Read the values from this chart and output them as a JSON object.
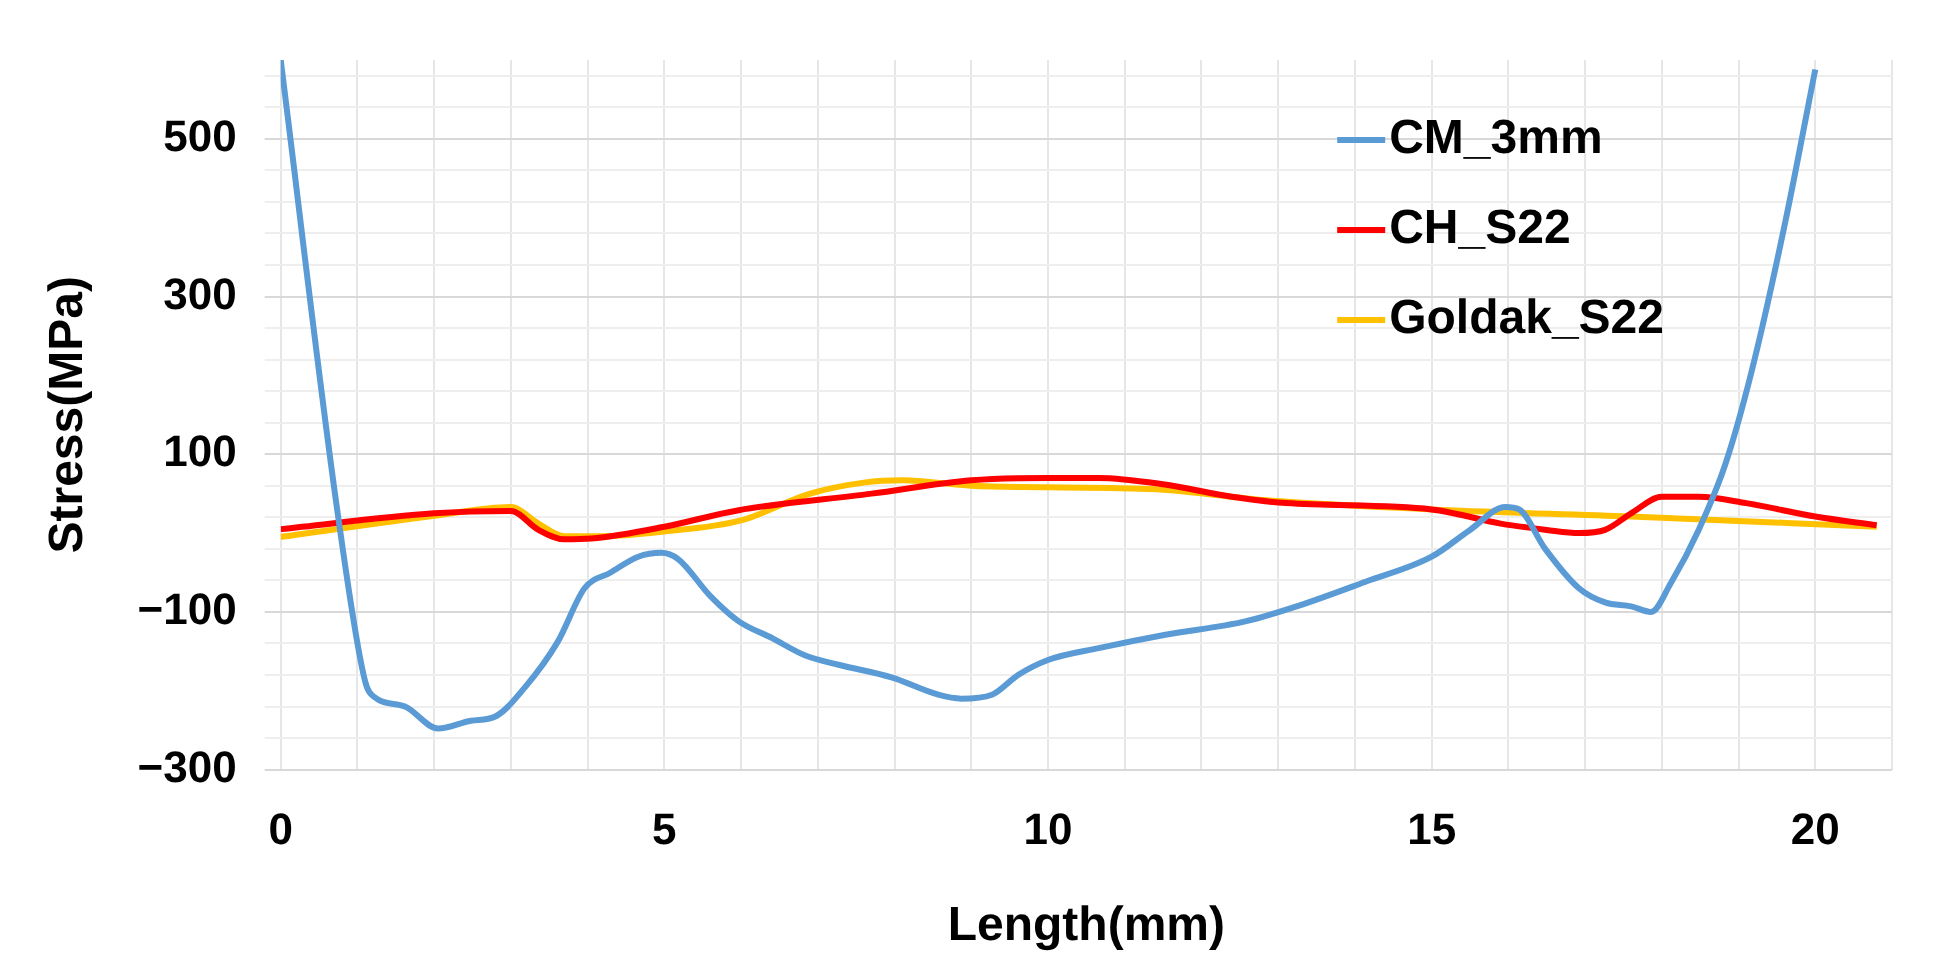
{
  "chart_data": {
    "type": "line",
    "xlabel": "Length(mm)",
    "ylabel": "Stress(MPa)",
    "xlim": [
      0,
      21
    ],
    "ylim": [
      -300,
      600
    ],
    "xticks": [
      0,
      {
        "value": 1,
        "label": null
      },
      {
        "value": 2,
        "label": null
      },
      {
        "value": 3,
        "label": null
      },
      {
        "value": 4,
        "label": null
      },
      5,
      {
        "value": 6,
        "label": null
      },
      {
        "value": 7,
        "label": null
      },
      {
        "value": 8,
        "label": null
      },
      {
        "value": 9,
        "label": null
      },
      10,
      {
        "value": 11,
        "label": null
      },
      {
        "value": 12,
        "label": null
      },
      {
        "value": 13,
        "label": null
      },
      {
        "value": 14,
        "label": null
      },
      15,
      {
        "value": 16,
        "label": null
      },
      {
        "value": 17,
        "label": null
      },
      {
        "value": 18,
        "label": null
      },
      {
        "value": 19,
        "label": null
      },
      20,
      {
        "value": 21,
        "label": null
      }
    ],
    "yticks": [
      {
        "value": -300,
        "label": "−300"
      },
      {
        "value": -260,
        "label": null
      },
      {
        "value": -220,
        "label": null
      },
      {
        "value": -180,
        "label": null
      },
      {
        "value": -140,
        "label": null
      },
      {
        "value": -100,
        "label": "−100"
      },
      {
        "value": -60,
        "label": null
      },
      {
        "value": -20,
        "label": null
      },
      {
        "value": 20,
        "label": null
      },
      {
        "value": 60,
        "label": null
      },
      100,
      {
        "value": 140,
        "label": null
      },
      {
        "value": 180,
        "label": null
      },
      {
        "value": 220,
        "label": null
      },
      {
        "value": 260,
        "label": null
      },
      300,
      {
        "value": 340,
        "label": null
      },
      {
        "value": 380,
        "label": null
      },
      {
        "value": 420,
        "label": null
      },
      {
        "value": 460,
        "label": null
      },
      500,
      {
        "value": 540,
        "label": null
      },
      {
        "value": 580,
        "label": null
      }
    ],
    "grid": true,
    "legend": "top right",
    "series": [
      {
        "name": "CM_3mm",
        "color": "#5b9bd5",
        "x": [
          0,
          0.75,
          1.1,
          1.22,
          1.62,
          2.05,
          2.48,
          2.79,
          3.18,
          3.61,
          3.96,
          4.3,
          4.66,
          4.96,
          5.18,
          5.6,
          5.97,
          6.4,
          6.83,
          7.27,
          7.96,
          8.57,
          8.87,
          9.27,
          9.61,
          10.0,
          10.66,
          11.53,
          12.57,
          13.27,
          14.13,
          15.0,
          15.5,
          15.96,
          16.14,
          16.48,
          16.92,
          17.26,
          17.6,
          17.86,
          18.12,
          18.48,
          18.83,
          19.17,
          19.61,
          20
        ],
        "values": [
          600,
          20,
          -188,
          -208,
          -220,
          -248,
          -238,
          -233,
          -196,
          -138,
          -70,
          -50,
          -30,
          -25,
          -33,
          -80,
          -112,
          -133,
          -155,
          -167,
          -183,
          -205,
          -210,
          -205,
          -180,
          -161,
          -146,
          -129,
          -112,
          -92,
          -62,
          -30,
          4,
          33,
          30,
          -20,
          -70,
          -88,
          -93,
          -100,
          -63,
          4,
          88,
          205,
          395,
          588
        ]
      },
      {
        "name": "CH_S22",
        "color": "#ff0000",
        "x": [
          0,
          2,
          3,
          3.36,
          3.7,
          4.05,
          5,
          5.97,
          7.7,
          9,
          10,
          10.66,
          11.5,
          12.4,
          13.1,
          15,
          15.9,
          16.5,
          16.92,
          17.26,
          17.6,
          18.0,
          18.48,
          19.1,
          20,
          20.8
        ],
        "values": [
          5,
          25,
          28,
          4,
          -8,
          -7,
          8,
          29,
          50,
          67,
          70,
          70,
          62,
          46,
          38,
          30,
          12,
          4,
          0,
          4,
          25,
          46,
          46,
          38,
          21,
          10
        ]
      },
      {
        "name": "Goldak_S22",
        "color": "#ffc000",
        "x": [
          0,
          2,
          3,
          3.36,
          3.7,
          4.2,
          5,
          6,
          6.9,
          7.6,
          8.1,
          9,
          10,
          11.5,
          12.8,
          15,
          17.6,
          20.8
        ],
        "values": [
          -5,
          22,
          33,
          12,
          -4,
          -4,
          2,
          16,
          50,
          64,
          67,
          60,
          58,
          55,
          42,
          30,
          21,
          8
        ]
      }
    ]
  }
}
